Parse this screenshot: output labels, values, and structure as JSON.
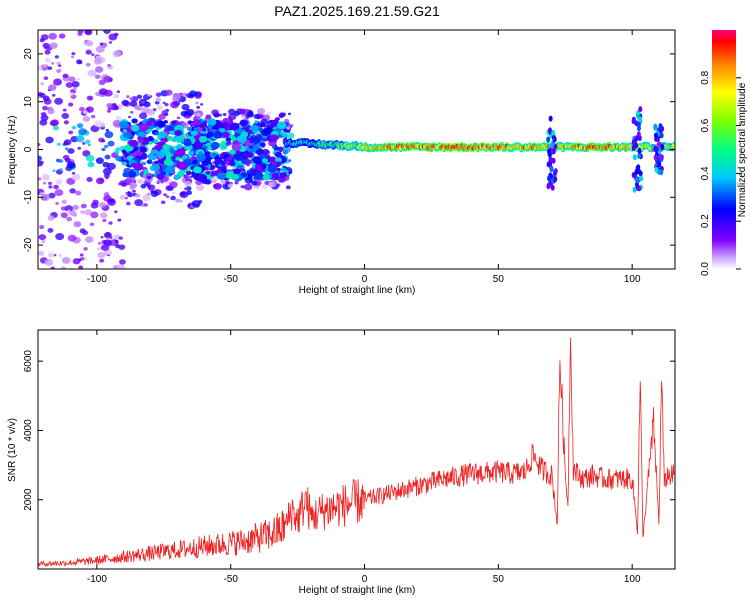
{
  "figure": {
    "title": "PAZ1.2025.169.21.59.G21"
  },
  "chart_data": [
    {
      "type": "heatmap",
      "title": "PAZ1.2025.169.21.59.G21",
      "xlabel": "Height of straight line (km)",
      "ylabel": "Frequency (Hz)",
      "xlim": [
        -122,
        116
      ],
      "ylim": [
        -25,
        25
      ],
      "x_ticks": [
        "-100",
        "-50",
        "0",
        "50",
        "100"
      ],
      "y_ticks": [
        "-20",
        "-10",
        "0",
        "10",
        "20"
      ],
      "colorbar": {
        "label": "Normalized spectral amplitude",
        "range": [
          0,
          1
        ],
        "ticks": [
          "0.0",
          "0.2",
          "0.4",
          "0.6",
          "0.8"
        ],
        "colormap": "rainbow",
        "colors": [
          "#ffffff",
          "#8000ff",
          "#0000ff",
          "#00c8ff",
          "#00ff80",
          "#80ff00",
          "#ffff00",
          "#ff8000",
          "#ff0000",
          "#ff0080"
        ]
      },
      "ridge": {
        "description_values": [
          {
            "x": -30,
            "freq": 1.5,
            "amp": 0.35
          },
          {
            "x": -10,
            "freq": 1.0,
            "amp": 0.55
          },
          {
            "x": 0,
            "freq": 0.5,
            "amp": 0.7
          },
          {
            "x": 20,
            "freq": 0.5,
            "amp": 0.85
          },
          {
            "x": 50,
            "freq": 0.5,
            "amp": 0.9
          },
          {
            "x": 70,
            "freq": 0.5,
            "amp": 0.75
          },
          {
            "x": 90,
            "freq": 0.5,
            "amp": 0.85
          },
          {
            "x": 110,
            "freq": 0.5,
            "amp": 0.6
          }
        ]
      }
    },
    {
      "type": "line",
      "xlabel": "Height of straight line (km)",
      "ylabel": "SNR (10 * v/v)",
      "xlim": [
        -122,
        116
      ],
      "ylim": [
        0,
        6900
      ],
      "x_ticks": [
        "-100",
        "-50",
        "0",
        "50",
        "100"
      ],
      "y_ticks": [
        "2000",
        "4000",
        "6000"
      ],
      "color": "#ee2222",
      "series": [
        {
          "x": [
            -122,
            -110,
            -100,
            -90,
            -80,
            -70,
            -60,
            -50,
            -45,
            -40,
            -35,
            -30,
            -27,
            -25,
            -22,
            -20,
            -15,
            -10,
            -5,
            0,
            10,
            20,
            30,
            40,
            50,
            55,
            60,
            63,
            66,
            70,
            72,
            73,
            75,
            76,
            77,
            78,
            80,
            82,
            85,
            90,
            95,
            100,
            102,
            103,
            104,
            106,
            108,
            110,
            111,
            112,
            113,
            116
          ],
          "y": [
            150,
            180,
            250,
            350,
            450,
            550,
            650,
            750,
            800,
            900,
            1000,
            1200,
            1700,
            1400,
            2000,
            1500,
            1700,
            1800,
            1900,
            2000,
            2200,
            2400,
            2600,
            2750,
            2800,
            2750,
            2800,
            3300,
            2900,
            2700,
            1300,
            6200,
            2700,
            1900,
            6900,
            2900,
            2700,
            2600,
            2700,
            2600,
            2600,
            2600,
            1100,
            5600,
            900,
            2600,
            4200,
            1300,
            5600,
            2400,
            2700,
            2700
          ]
        }
      ]
    }
  ]
}
